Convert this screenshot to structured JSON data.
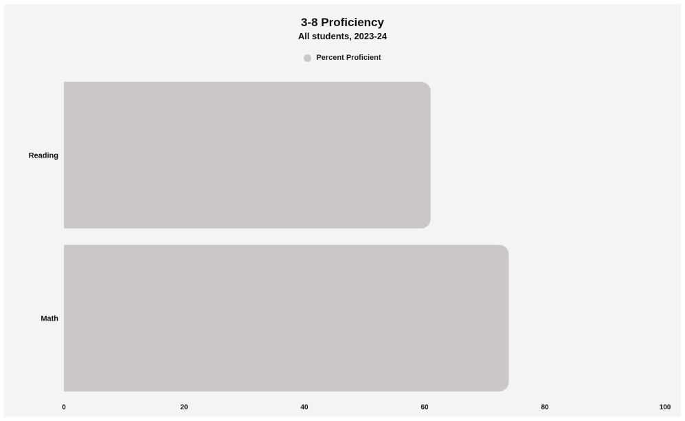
{
  "chart_data": {
    "type": "bar",
    "orientation": "horizontal",
    "title": "3-8 Proficiency",
    "subtitle": "All students, 2023-24",
    "xlabel": "",
    "ylabel": "",
    "categories": [
      "Reading",
      "Math"
    ],
    "series": [
      {
        "name": "Percent Proficient",
        "values": [
          61,
          74
        ],
        "color": "#cbc7c6"
      }
    ],
    "xlim": [
      0,
      100
    ],
    "xticks": [
      0,
      20,
      40,
      60,
      80,
      100
    ],
    "grid": false,
    "legend_position": "top-center"
  }
}
